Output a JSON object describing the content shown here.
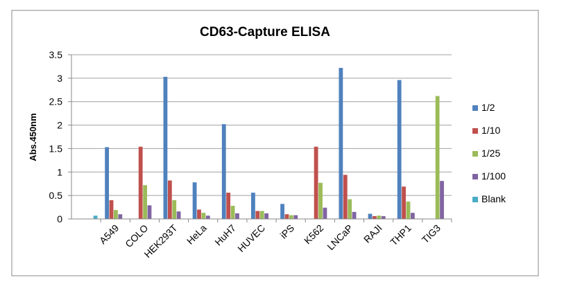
{
  "chart_data": {
    "type": "bar",
    "title": "CD63-Capture ELISA",
    "xlabel": "",
    "ylabel": "Abs.450nm",
    "ylim": [
      0,
      3.5
    ],
    "yticks": [
      "0",
      "0.5",
      "1",
      "1.5",
      "2",
      "2.5",
      "3",
      "3.5"
    ],
    "grid": true,
    "legend_position": "right",
    "categories": [
      "",
      "A549",
      "COLO",
      "HEK293T",
      "HeLa",
      "HuH7",
      "HUVEC",
      "iPS",
      "K562",
      "LNCaP",
      "RAJI",
      "THP1",
      "TIG3"
    ],
    "series": [
      {
        "name": "1/2",
        "color": "#4f81bd",
        "values": [
          0,
          1.53,
          0,
          3.03,
          0.78,
          2.02,
          0.56,
          0.32,
          0,
          3.22,
          0.11,
          2.96,
          0
        ]
      },
      {
        "name": "1/10",
        "color": "#c0504d",
        "values": [
          0,
          0.4,
          1.54,
          0.82,
          0.2,
          0.56,
          0.17,
          0.1,
          1.54,
          0.94,
          0.06,
          0.69,
          0
        ]
      },
      {
        "name": "1/25",
        "color": "#9bbb59",
        "values": [
          0,
          0.19,
          0.72,
          0.4,
          0.13,
          0.28,
          0.17,
          0.08,
          0.77,
          0.42,
          0.07,
          0.37,
          2.62
        ]
      },
      {
        "name": "1/100",
        "color": "#8064a2",
        "values": [
          0,
          0.1,
          0.29,
          0.16,
          0.07,
          0.12,
          0.12,
          0.08,
          0.24,
          0.15,
          0.06,
          0.13,
          0.81
        ]
      },
      {
        "name": "Blank",
        "color": "#4bacc6",
        "values": [
          0.07,
          0,
          0,
          0,
          0,
          0,
          0,
          0,
          0,
          0,
          0,
          0,
          0
        ]
      }
    ]
  }
}
